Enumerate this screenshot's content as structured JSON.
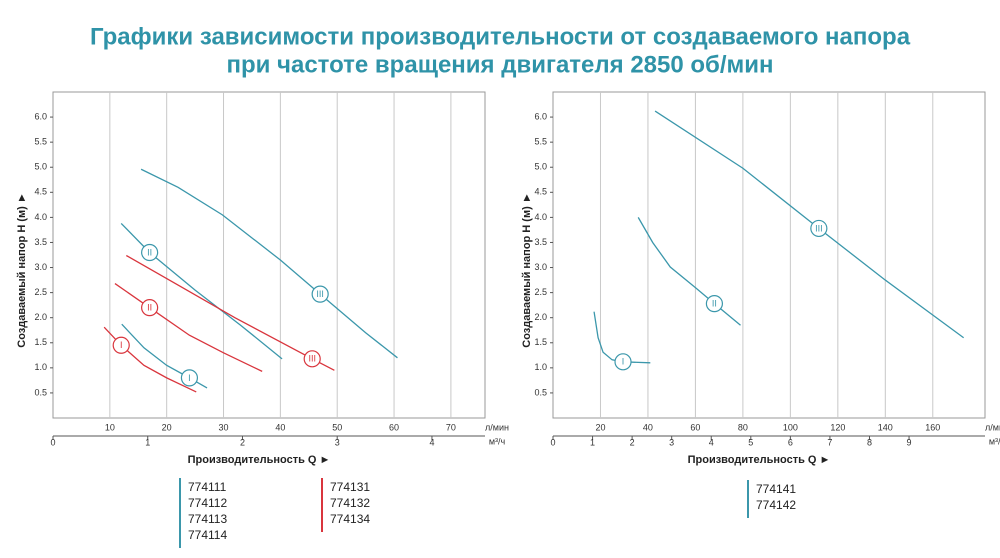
{
  "header": {
    "title": [
      "Графики зависимости производительности от создаваемого напора",
      "при частоте вращения двигателя 2850 об/мин"
    ]
  },
  "chart_data": [
    {
      "type": "line",
      "y_label": "Создаваемый напор H (м) ►",
      "x_label": "Производительность Q ►",
      "x_unit": "л/мин",
      "x2_unit": "м³/ч",
      "xlim": [
        0,
        76
      ],
      "xticks": [
        10,
        20,
        30,
        40,
        50,
        60,
        70
      ],
      "x2lim": [
        0,
        4.56
      ],
      "x2ticks": [
        0,
        1,
        2,
        3,
        4
      ],
      "ylim": [
        0,
        6.5
      ],
      "yticks": [
        0.5,
        {
          "value": 1,
          "label": "1.0"
        },
        1.5,
        {
          "value": 2,
          "label": "2.0"
        },
        2.5,
        {
          "value": 3,
          "label": "3.0"
        },
        3.5,
        {
          "value": 4,
          "label": "4.0"
        },
        4.5,
        {
          "value": 5,
          "label": "5.0"
        },
        5.5,
        {
          "value": 6,
          "label": "6.0"
        }
      ],
      "grid": true,
      "series": [
        {
          "name": "III",
          "color": "#3b97ab",
          "x": [
            15.5,
            22,
            29.8,
            40,
            47,
            55,
            60.6
          ],
          "values": [
            4.96,
            4.6,
            4.05,
            3.15,
            2.47,
            1.7,
            1.2
          ]
        },
        {
          "name": "II",
          "color": "#3b97ab",
          "x": [
            12,
            17,
            25,
            33,
            40.3
          ],
          "values": [
            3.88,
            3.3,
            2.55,
            1.85,
            1.18
          ]
        },
        {
          "name": "I",
          "color": "#3b97ab",
          "x": [
            12.1,
            16,
            20,
            24,
            27.1
          ],
          "values": [
            1.87,
            1.4,
            1.05,
            0.8,
            0.6
          ]
        },
        {
          "name": "III",
          "color": "#d9353d",
          "x": [
            12.9,
            22,
            32,
            45.6,
            49.5
          ],
          "values": [
            3.24,
            2.65,
            2.0,
            1.18,
            0.95
          ]
        },
        {
          "name": "II",
          "color": "#d9353d",
          "x": [
            10.9,
            17,
            24,
            30,
            36.8
          ],
          "values": [
            2.68,
            2.2,
            1.65,
            1.3,
            0.93
          ]
        },
        {
          "name": "I",
          "color": "#d9353d",
          "x": [
            9,
            12,
            16,
            20,
            25.2
          ],
          "values": [
            1.81,
            1.45,
            1.05,
            0.8,
            0.52
          ]
        }
      ],
      "legend": [
        {
          "color": "#3b97ab",
          "items": [
            "774111",
            "774112",
            "774113",
            "774114"
          ]
        },
        {
          "color": "#d9353d",
          "items": [
            "774131",
            "774132",
            "774134"
          ]
        }
      ]
    },
    {
      "type": "line",
      "y_label": "Создаваемый напор H (м) ►",
      "x_label": "Производительность Q ►",
      "x_unit": "л/мин",
      "x2_unit": "м³/ч",
      "xlim": [
        0,
        182
      ],
      "xticks": [
        20,
        40,
        60,
        80,
        100,
        120,
        140,
        160
      ],
      "x2lim": [
        0,
        10.92
      ],
      "x2ticks": [
        0,
        1,
        2,
        3,
        4,
        5,
        6,
        7,
        8,
        9
      ],
      "ylim": [
        0,
        6.5
      ],
      "yticks": [
        0.5,
        {
          "value": 1,
          "label": "1.0"
        },
        1.5,
        {
          "value": 2,
          "label": "2.0"
        },
        2.5,
        {
          "value": 3,
          "label": "3.0"
        },
        3.5,
        {
          "value": 4,
          "label": "4.0"
        },
        4.5,
        {
          "value": 5,
          "label": "5.0"
        },
        5.5,
        {
          "value": 6,
          "label": "6.0"
        }
      ],
      "grid": true,
      "series": [
        {
          "name": "III",
          "color": "#3b97ab",
          "x": [
            43,
            80,
            112,
            140,
            173
          ],
          "values": [
            6.12,
            4.98,
            3.78,
            2.75,
            1.6
          ]
        },
        {
          "name": "II",
          "color": "#3b97ab",
          "x": [
            35.9,
            42,
            49.4,
            60,
            68,
            79
          ],
          "values": [
            4.0,
            3.5,
            3.01,
            2.6,
            2.28,
            1.85
          ]
        },
        {
          "name": "I",
          "color": "#3b97ab",
          "x": [
            17.3,
            19,
            21.1,
            24.9,
            29.5,
            41
          ],
          "values": [
            2.12,
            1.6,
            1.31,
            1.16,
            1.12,
            1.1
          ]
        }
      ],
      "legend": [
        {
          "color": "#3b97ab",
          "items": [
            "774141",
            "774142"
          ]
        }
      ]
    }
  ]
}
